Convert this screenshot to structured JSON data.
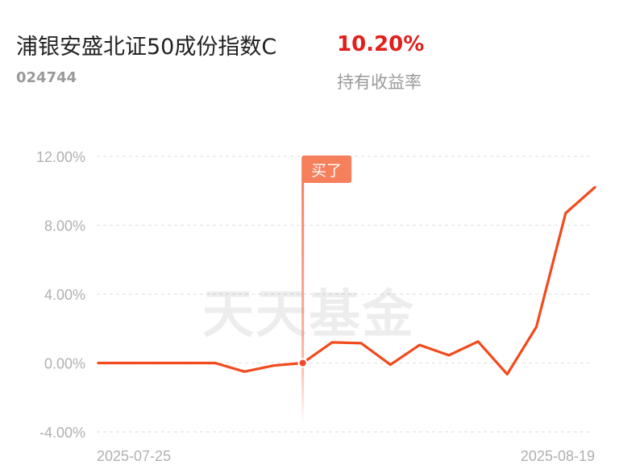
{
  "header": {
    "fund_name": "浦银安盛北证50成份指数C",
    "fund_code": "024744",
    "return_value": "10.20%",
    "return_label": "持有收益率"
  },
  "watermark": "天天基金",
  "buy_marker": {
    "label": "买了",
    "date_index": 7
  },
  "colors": {
    "line": "#f24a1d",
    "marker": "#f67f5c",
    "axis_text": "#b0b0b0",
    "grid": "#e4e4e4",
    "return": "#e0201b"
  },
  "chart_data": {
    "type": "line",
    "title": "",
    "xlabel": "",
    "ylabel": "",
    "y_unit": "%",
    "ylim": [
      -4,
      12
    ],
    "yticks": [
      12,
      8,
      4,
      0,
      -4
    ],
    "ytick_labels": [
      "12.00%",
      "8.00%",
      "4.00%",
      "0.00%",
      "-4.00%"
    ],
    "x_tick_labels": [
      "2025-07-25",
      "2025-08-19"
    ],
    "grid": true,
    "series": [
      {
        "values": [
          0,
          0,
          0,
          0,
          0,
          -0.5,
          -0.15,
          0,
          1.2,
          1.15,
          -0.1,
          1.05,
          0.45,
          1.25,
          -0.65,
          2.1,
          8.7,
          10.2
        ]
      }
    ]
  }
}
